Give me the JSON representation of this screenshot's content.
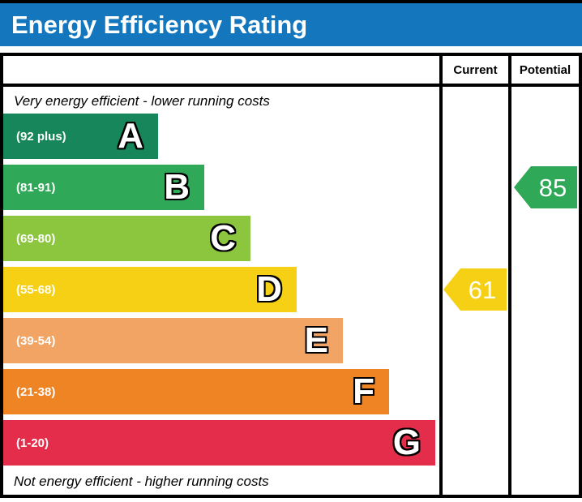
{
  "title": "Energy Efficiency Rating",
  "title_bar_color": "#1477bd",
  "table": {
    "columns": {
      "current": "Current",
      "potential": "Potential"
    },
    "top_note": "Very energy efficient - lower running costs",
    "bottom_note": "Not energy efficient - higher running costs"
  },
  "chart_data": {
    "type": "epc-energy-rating",
    "bands": [
      {
        "letter": "A",
        "range": "(92 plus)",
        "color": "#17865a"
      },
      {
        "letter": "B",
        "range": "(81-91)",
        "color": "#2fa858"
      },
      {
        "letter": "C",
        "range": "(69-80)",
        "color": "#8cc63f"
      },
      {
        "letter": "D",
        "range": "(55-68)",
        "color": "#f6d014"
      },
      {
        "letter": "E",
        "range": "(39-54)",
        "color": "#f2a465"
      },
      {
        "letter": "F",
        "range": "(21-38)",
        "color": "#ee8424"
      },
      {
        "letter": "G",
        "range": "(1-20)",
        "color": "#e32d4a"
      }
    ],
    "current": {
      "value": 61,
      "band": "D",
      "color": "#f6d014"
    },
    "potential": {
      "value": 85,
      "band": "B",
      "color": "#2fa858"
    }
  }
}
